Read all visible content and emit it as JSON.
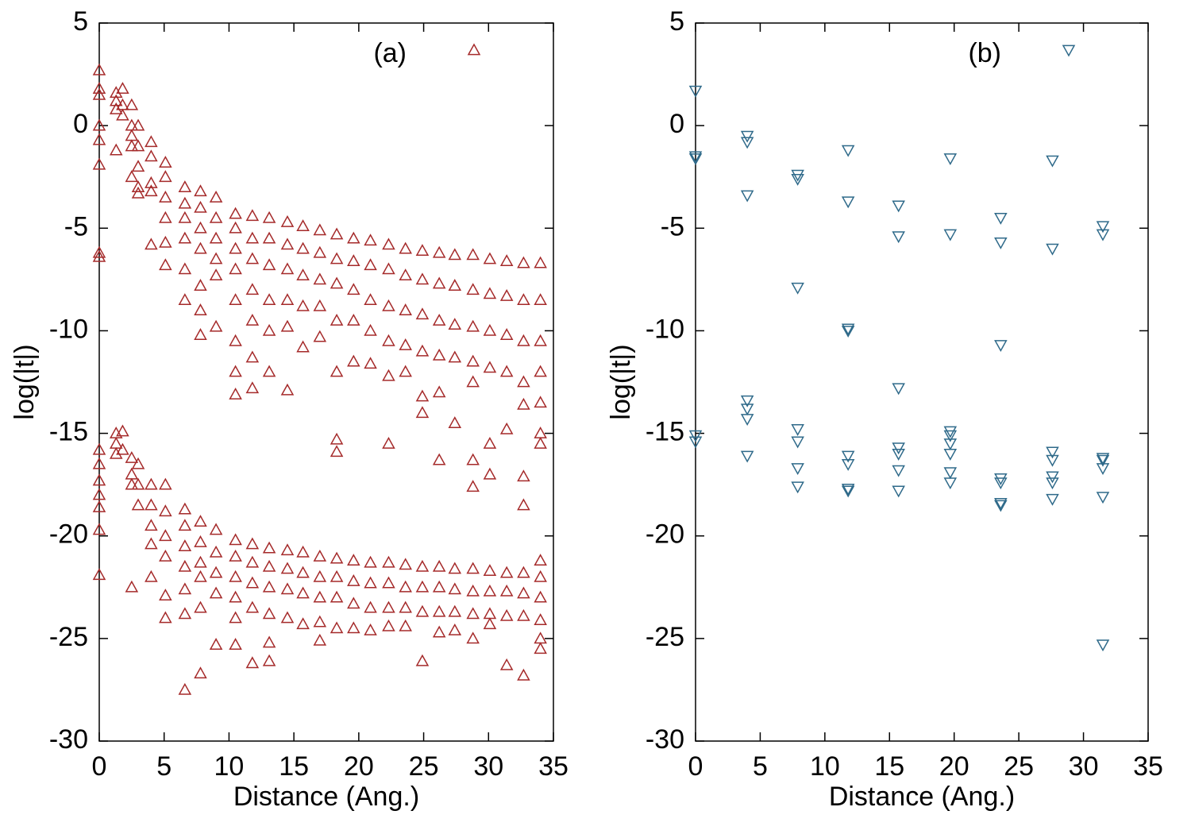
{
  "chart_data": [
    {
      "type": "scatter",
      "xlabel": "Distance (Ang.)",
      "ylabel": "log(|t|)",
      "xlim": [
        0,
        35
      ],
      "ylim": [
        -30,
        5
      ],
      "xticks": [
        0,
        5,
        10,
        15,
        20,
        25,
        30,
        35
      ],
      "yticks": [
        5,
        0,
        -5,
        -10,
        -15,
        -20,
        -25,
        -30
      ],
      "marker": "triangle-up",
      "series": [
        {
          "name": "(a)",
          "color": "#a52a2a",
          "x": [
            0,
            0,
            0,
            0,
            0,
            0,
            0,
            0,
            0,
            0,
            0,
            0,
            0,
            0,
            0,
            1.3,
            1.3,
            1.3,
            1.3,
            1.3,
            1.3,
            1.3,
            1.8,
            1.8,
            1.8,
            1.8,
            1.8,
            2.5,
            2.5,
            2.5,
            2.5,
            2.5,
            2.5,
            2.5,
            2.5,
            2.5,
            3,
            3,
            3,
            3,
            3,
            3,
            3,
            3,
            4,
            4,
            4,
            4,
            4,
            4,
            4,
            4,
            4,
            4,
            5.1,
            5.1,
            5.1,
            5.1,
            5.1,
            5.1,
            5.1,
            5.1,
            5.1,
            5.1,
            5.1,
            5.1,
            6.6,
            6.6,
            6.6,
            6.6,
            6.6,
            6.6,
            6.6,
            6.6,
            6.6,
            6.6,
            6.6,
            6.6,
            6.6,
            7.8,
            7.8,
            7.8,
            7.8,
            7.8,
            7.8,
            7.8,
            7.8,
            7.8,
            7.8,
            7.8,
            7.8,
            7.8,
            9,
            9,
            9,
            9,
            9,
            9,
            9,
            9,
            9,
            9,
            9,
            10.5,
            10.5,
            10.5,
            10.5,
            10.5,
            10.5,
            10.5,
            10.5,
            10.5,
            10.5,
            10.5,
            10.5,
            10.5,
            10.5,
            11.8,
            11.8,
            11.8,
            11.8,
            11.8,
            11.8,
            11.8,
            11.8,
            11.8,
            11.8,
            11.8,
            11.8,
            13.1,
            13.1,
            13.1,
            13.1,
            13.1,
            13.1,
            13.1,
            13.1,
            13.1,
            13.1,
            13.1,
            13.1,
            14.5,
            14.5,
            14.5,
            14.5,
            14.5,
            14.5,
            14.5,
            14.5,
            14.5,
            14.5,
            15.7,
            15.7,
            15.7,
            15.7,
            15.7,
            15.7,
            15.7,
            15.7,
            15.7,
            17,
            17,
            17,
            17,
            17,
            17,
            17,
            17,
            17,
            17,
            18.3,
            18.3,
            18.3,
            18.3,
            18.3,
            18.3,
            18.3,
            18.3,
            18.3,
            18.3,
            18.3,
            19.6,
            19.6,
            19.6,
            19.6,
            19.6,
            19.6,
            19.6,
            19.6,
            19.6,
            20.9,
            20.9,
            20.9,
            20.9,
            20.9,
            20.9,
            20.9,
            20.9,
            20.9,
            22.3,
            22.3,
            22.3,
            22.3,
            22.3,
            22.3,
            22.3,
            22.3,
            22.3,
            22.3,
            23.6,
            23.6,
            23.6,
            23.6,
            23.6,
            23.6,
            23.6,
            23.6,
            23.6,
            24.9,
            24.9,
            24.9,
            24.9,
            24.9,
            24.9,
            24.9,
            24.9,
            24.9,
            24.9,
            26.2,
            26.2,
            26.2,
            26.2,
            26.2,
            26.2,
            26.2,
            26.2,
            26.2,
            26.2,
            27.4,
            27.4,
            27.4,
            27.4,
            27.4,
            27.4,
            27.4,
            27.4,
            27.4,
            28.8,
            28.8,
            28.8,
            28.8,
            28.8,
            28.8,
            28.8,
            28.8,
            28.8,
            28.8,
            28.8,
            30.1,
            30.1,
            30.1,
            30.1,
            30.1,
            30.1,
            30.1,
            30.1,
            30.1,
            30.1,
            31.4,
            31.4,
            31.4,
            31.4,
            31.4,
            31.4,
            31.4,
            31.4,
            31.4,
            32.7,
            32.7,
            32.7,
            32.7,
            32.7,
            32.7,
            32.7,
            32.7,
            32.7,
            32.7,
            32.7,
            34,
            34,
            34,
            34,
            34,
            34,
            34,
            34,
            34,
            34,
            34,
            34,
            34
          ],
          "values": [
            2.7,
            1.8,
            1.5,
            0,
            -0.7,
            -1.9,
            -6.2,
            -6.4,
            -15.8,
            -16.5,
            -17.3,
            -18,
            -18.6,
            -19.7,
            -21.9,
            1.6,
            1.2,
            0.8,
            -1.2,
            -15,
            -15.5,
            -16,
            1.8,
            1,
            0.5,
            -14.9,
            -15.8,
            1,
            0,
            -0.5,
            -1,
            -2.5,
            -16.2,
            -17,
            -17.5,
            -22.5,
            0,
            -1,
            -2,
            -3,
            -3.3,
            -16.5,
            -17.5,
            -18.5,
            -0.8,
            -1.5,
            -2.8,
            -3.2,
            -5.8,
            -17.5,
            -18.5,
            -19.5,
            -20.4,
            -22,
            -1.8,
            -2.5,
            -3.5,
            -4.5,
            -5.7,
            -6.8,
            -17.5,
            -18.8,
            -20,
            -21,
            -22.9,
            -24,
            -3,
            -3.8,
            -4.5,
            -5.5,
            -7,
            -8.5,
            -18.7,
            -19.5,
            -20.5,
            -21.5,
            -22.6,
            -23.8,
            -27.5,
            -3.2,
            -4,
            -5,
            -6,
            -7.8,
            -9,
            -10.2,
            -19.3,
            -20.3,
            -21.3,
            -22,
            -23.5,
            -26.7,
            -3.5,
            -4.5,
            -5.5,
            -6.5,
            -7.3,
            -9.8,
            -19.7,
            -20.8,
            -21.8,
            -22.8,
            -25.3,
            -4.3,
            -5,
            -6,
            -7,
            -8.5,
            -10.5,
            -12,
            -13.1,
            -20.2,
            -21,
            -22,
            -23,
            -24,
            -25.3,
            -4.4,
            -5.5,
            -6.5,
            -8,
            -9.5,
            -11.3,
            -12.8,
            -20.4,
            -21.3,
            -22.3,
            -23.5,
            -26.2,
            -4.5,
            -5.5,
            -6.8,
            -8.5,
            -10,
            -12,
            -20.6,
            -21.5,
            -22.5,
            -23.8,
            -25.2,
            -26.1,
            -4.7,
            -5.8,
            -7,
            -8.5,
            -9.8,
            -12.9,
            -20.7,
            -21.6,
            -22.6,
            -24,
            -4.9,
            -6,
            -7.3,
            -8.8,
            -10.8,
            -20.8,
            -21.8,
            -22.8,
            -24.3,
            -5.1,
            -6.2,
            -7.5,
            -8.8,
            -10.3,
            -21,
            -22,
            -23,
            -24.2,
            -25.1,
            -5.3,
            -6.5,
            -7.7,
            -9.5,
            -12,
            -15.3,
            -15.9,
            -21.1,
            -22,
            -23,
            -24.5,
            -5.5,
            -6.6,
            -8,
            -9.5,
            -11.5,
            -21.2,
            -22.2,
            -23.3,
            -24.5,
            -5.6,
            -6.8,
            -8.5,
            -10,
            -11.6,
            -21.3,
            -22.3,
            -23.5,
            -24.6,
            -5.8,
            -7,
            -8.8,
            -10.5,
            -12.2,
            -15.5,
            -21.3,
            -22.3,
            -23.5,
            -24.4,
            -6,
            -7.3,
            -9,
            -10.7,
            -12,
            -21.4,
            -22.5,
            -23.5,
            -24.4,
            -6.1,
            -7.5,
            -9.2,
            -11,
            -13.2,
            -14,
            -21.5,
            -22.5,
            -23.7,
            -26.1,
            -6.2,
            -7.7,
            -9.5,
            -11.2,
            -13,
            -16.3,
            -21.5,
            -22.5,
            -23.7,
            -24.7,
            -6.3,
            -7.8,
            -9.7,
            -11.3,
            -14.5,
            -21.6,
            -22.6,
            -23.7,
            -24.6,
            -6.3,
            -8,
            -9.8,
            -11.5,
            -12.5,
            -16.3,
            -17.6,
            -21.6,
            -22.7,
            -23.8,
            -25,
            -6.5,
            -8.2,
            -10,
            -11.8,
            -15.5,
            -17,
            -21.7,
            -22.7,
            -23.8,
            -24.3,
            -6.6,
            -8.3,
            -10.2,
            -12,
            -14.8,
            -21.8,
            -22.7,
            -23.9,
            -26.3,
            -6.7,
            -8.5,
            -10.5,
            -12.5,
            -13.6,
            -17.1,
            -18.5,
            -21.8,
            -22.8,
            -23.9,
            -26.8,
            -6.7,
            -8.5,
            -10.5,
            -12,
            -13.5,
            -15,
            -15.5,
            -21.2,
            -22,
            -23,
            -24.1,
            -25,
            -25.5
          ]
        }
      ]
    },
    {
      "type": "scatter",
      "xlabel": "Distance (Ang.)",
      "ylabel": "log(|t|)",
      "xlim": [
        0,
        35
      ],
      "ylim": [
        -30,
        5
      ],
      "xticks": [
        0,
        5,
        10,
        15,
        20,
        25,
        30,
        35
      ],
      "yticks": [
        5,
        0,
        -5,
        -10,
        -15,
        -20,
        -25,
        -30
      ],
      "marker": "triangle-down",
      "series": [
        {
          "name": "(b)",
          "color": "#2f6a8a",
          "x": [
            0,
            0,
            0,
            0,
            0,
            4,
            4,
            4,
            4,
            4,
            4,
            4,
            7.9,
            7.9,
            7.9,
            7.9,
            7.9,
            7.9,
            7.9,
            11.8,
            11.8,
            11.8,
            11.8,
            11.8,
            11.8,
            11.8,
            11.8,
            15.7,
            15.7,
            15.7,
            15.7,
            15.7,
            15.7,
            15.7,
            19.7,
            19.7,
            19.7,
            19.7,
            19.7,
            19.7,
            19.7,
            19.7,
            23.6,
            23.6,
            23.6,
            23.6,
            23.6,
            23.6,
            23.6,
            27.6,
            27.6,
            27.6,
            27.6,
            27.6,
            27.6,
            27.6,
            31.5,
            31.5,
            31.5,
            31.5,
            31.5,
            31.5,
            31.5
          ],
          "values": [
            1.7,
            -1.5,
            -1.6,
            -15.1,
            -15.4,
            -0.5,
            -0.8,
            -3.4,
            -13.4,
            -13.8,
            -14.3,
            -16.1,
            -2.4,
            -2.6,
            -7.9,
            -14.8,
            -15.4,
            -16.7,
            -17.6,
            -1.2,
            -3.7,
            -9.9,
            -10,
            -16.1,
            -16.5,
            -17.7,
            -17.8,
            -3.9,
            -5.4,
            -12.8,
            -15.7,
            -16,
            -16.8,
            -17.8,
            -1.6,
            -5.3,
            -14.9,
            -15.1,
            -15.5,
            -16,
            -16.9,
            -17.4,
            -4.5,
            -5.7,
            -10.7,
            -17.2,
            -17.4,
            -18.4,
            -18.5,
            -1.7,
            -6,
            -15.9,
            -16.3,
            -17.1,
            -17.4,
            -18.2,
            -4.9,
            -5.3,
            -16.2,
            -16.3,
            -16.7,
            -18.1,
            -25.3
          ]
        }
      ]
    }
  ]
}
